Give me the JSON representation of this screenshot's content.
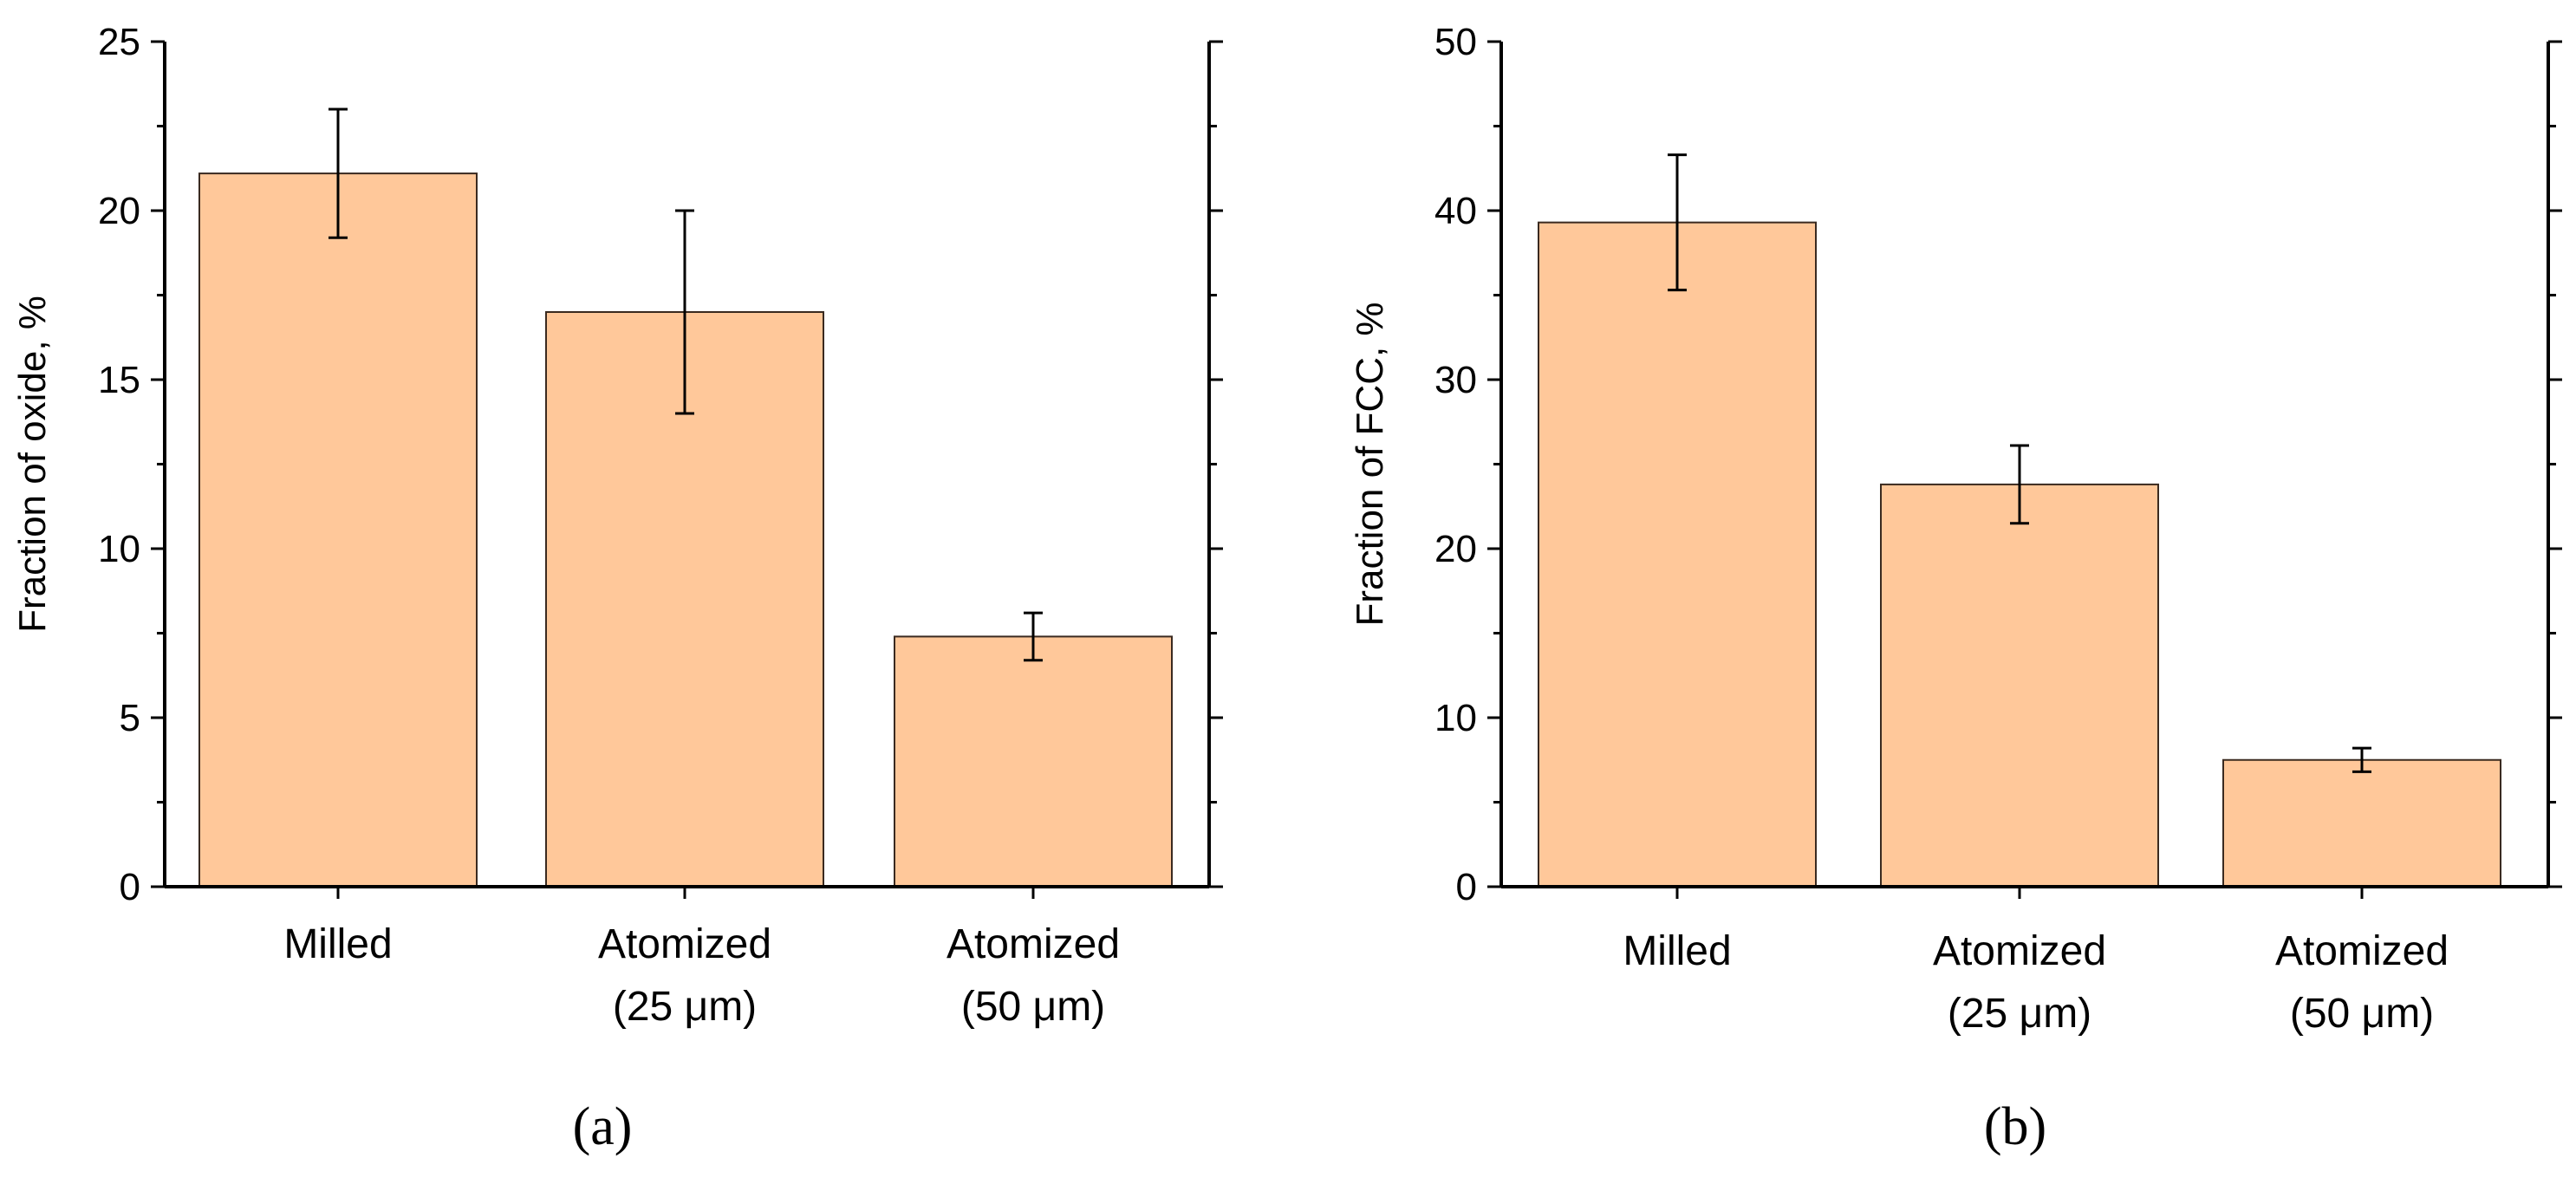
{
  "chart_data": [
    {
      "type": "bar",
      "panel_label": "(a)",
      "categories": [
        {
          "line1": "Milled",
          "line2": ""
        },
        {
          "line1": "Atomized",
          "line2": "(25 μm)"
        },
        {
          "line1": "Atomized",
          "line2": "(50 μm)"
        }
      ],
      "values": [
        21.1,
        17.0,
        7.4
      ],
      "errors": [
        1.9,
        3.0,
        0.7
      ],
      "ylabel": "Fraction of oxide, %",
      "xlabel": "",
      "ylim": [
        0,
        25
      ],
      "yticks": [
        0,
        5,
        10,
        15,
        20,
        25
      ],
      "bar_color": "#ffc89a",
      "edge_color": "#3a2a20"
    },
    {
      "type": "bar",
      "panel_label": "(b)",
      "categories": [
        {
          "line1": "Milled",
          "line2": ""
        },
        {
          "line1": "Atomized",
          "line2": "(25 μm)"
        },
        {
          "line1": "Atomized",
          "line2": "(50 μm)"
        }
      ],
      "values": [
        39.3,
        23.8,
        7.5
      ],
      "errors": [
        4.0,
        2.3,
        0.7
      ],
      "ylabel": "Fraction of FCC, %",
      "xlabel": "",
      "ylim": [
        0,
        50
      ],
      "yticks": [
        0,
        10,
        20,
        30,
        40,
        50
      ],
      "bar_color": "#ffc89a",
      "edge_color": "#3a2a20"
    }
  ]
}
